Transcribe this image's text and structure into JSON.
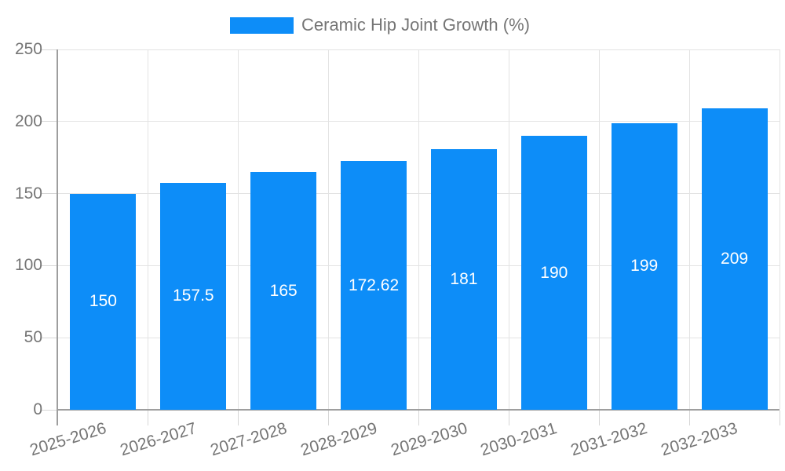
{
  "legend": {
    "label": "Ceramic Hip Joint Growth (%)"
  },
  "chart_data": {
    "type": "bar",
    "title": "Ceramic Hip Joint Growth (%)",
    "categories": [
      "2025-2026",
      "2026-2027",
      "2027-2028",
      "2028-2029",
      "2029-2030",
      "2030-2031",
      "2031-2032",
      "2032-2033"
    ],
    "values": [
      150,
      157.5,
      165,
      172.62,
      181,
      190,
      199,
      209
    ],
    "value_labels": [
      "150",
      "157.5",
      "165",
      "172.62",
      "181",
      "190",
      "199",
      "209"
    ],
    "xlabel": "",
    "ylabel": "",
    "ylim": [
      0,
      250
    ],
    "yticks": [
      0,
      50,
      100,
      150,
      200,
      250
    ],
    "grid": true,
    "legend_position": "top",
    "x_label_rotation_deg": -17,
    "value_label_position": "inside-middle",
    "colors": {
      "bar": "#0d8df8",
      "axis": "#9e9e9e",
      "grid": "#e3e3e3",
      "tick": "#d6d6d6",
      "text": "#757575",
      "value_label": "#ffffff",
      "background": "#ffffff"
    }
  }
}
